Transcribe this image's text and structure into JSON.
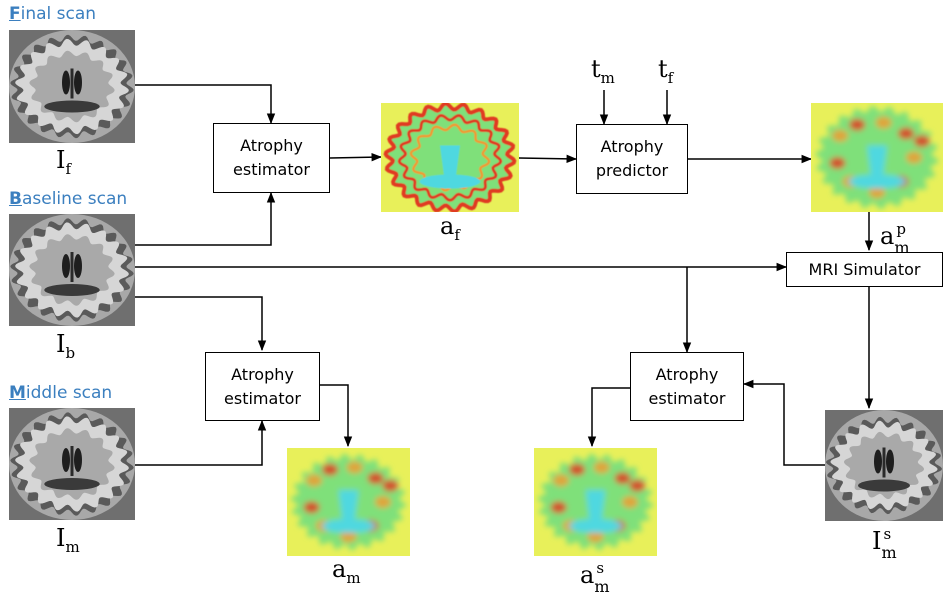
{
  "scans": {
    "final": {
      "cap": "F",
      "rest": "inal scan",
      "label_base": "I",
      "label_sub": "f"
    },
    "baseline": {
      "cap": "B",
      "rest": "aseline scan",
      "label_base": "I",
      "label_sub": "b"
    },
    "middle": {
      "cap": "M",
      "rest": "iddle scan",
      "label_base": "I",
      "label_sub": "m"
    },
    "simulated": {
      "label_base": "I",
      "label_sub": "m",
      "label_sup": "s"
    }
  },
  "boxes": {
    "atrophy_estimator_top": [
      "Atrophy",
      "estimator"
    ],
    "atrophy_predictor": [
      "Atrophy",
      "predictor"
    ],
    "mri_simulator": "MRI Simulator",
    "atrophy_estimator_bottom_left": [
      "Atrophy",
      "estimator"
    ],
    "atrophy_estimator_bottom_right": [
      "Atrophy",
      "estimator"
    ]
  },
  "maps": {
    "af": {
      "base": "a",
      "sub": "f"
    },
    "amp": {
      "base": "a",
      "sub": "m",
      "sup": "p"
    },
    "am": {
      "base": "a",
      "sub": "m"
    },
    "ams": {
      "base": "a",
      "sub": "m",
      "sup": "s"
    }
  },
  "times": {
    "tm": {
      "base": "t",
      "sub": "m"
    },
    "tf": {
      "base": "t",
      "sub": "f"
    }
  },
  "colors": {
    "scan_title": "#3b7fbf",
    "map_background": "#e8f05a",
    "map_green": "#7fe07a",
    "map_cyan": "#4fd8e0",
    "map_red": "#e03a22",
    "map_orange": "#f09a30"
  }
}
